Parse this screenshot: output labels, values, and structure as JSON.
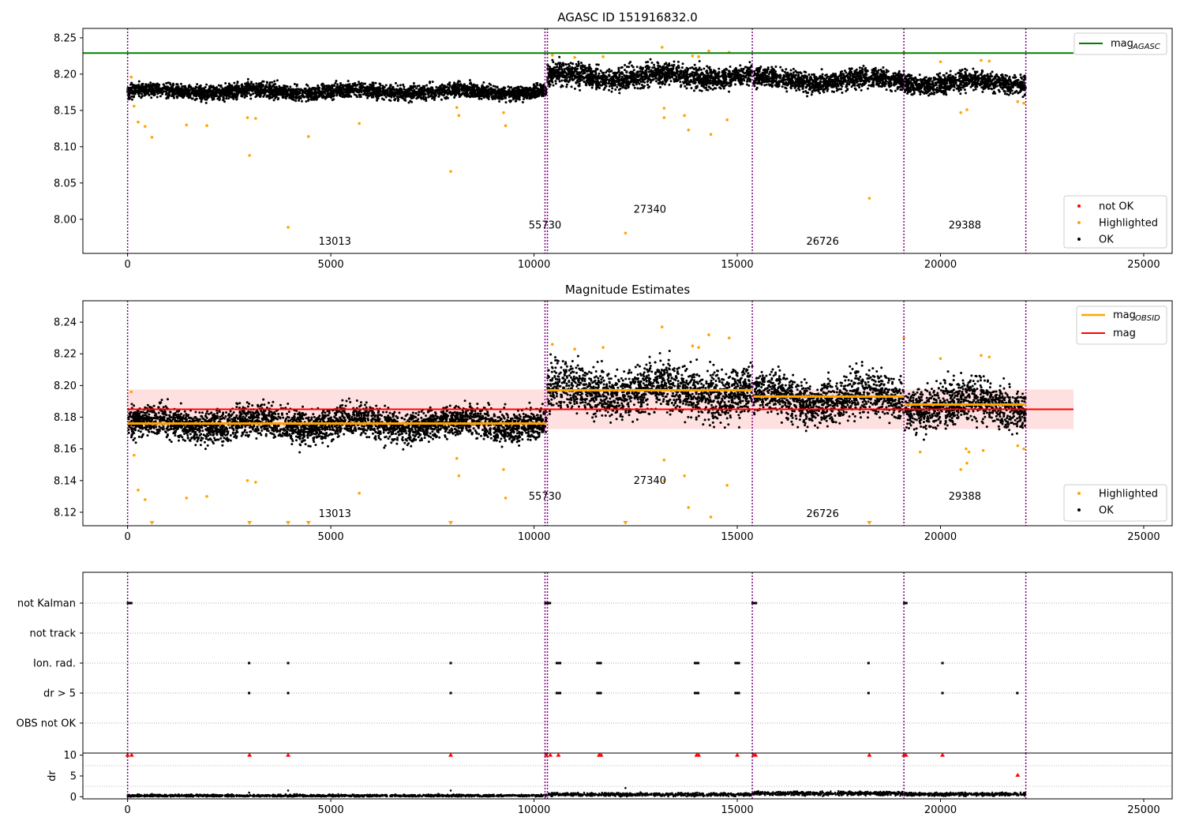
{
  "colors": {
    "ok": "#000000",
    "highlighted": "#ffa500",
    "not_ok": "#ff0000",
    "agasc_line": "#008000",
    "mean_line": "#ff0000",
    "obsid_line": "#ffa500",
    "band": "#ffcccc",
    "obs_divider": "#800080"
  },
  "chart_data": [
    {
      "type": "scatter",
      "title": "AGASC ID 151916832.0",
      "xlim": [
        -1100,
        25700
      ],
      "ylim": [
        7.953,
        8.263
      ],
      "xticks": [
        0,
        5000,
        10000,
        15000,
        20000,
        25000
      ],
      "yticks": [
        8.0,
        8.05,
        8.1,
        8.15,
        8.2,
        8.25
      ],
      "ytick_labels": [
        "8.00",
        "8.05",
        "8.10",
        "8.15",
        "8.20",
        "8.25"
      ],
      "mag_agasc": 8.229,
      "legend_upper": "mag",
      "legend_upper_sub": "AGASC",
      "legend_lower": [
        "not OK",
        "Highlighted",
        "OK"
      ],
      "obsid_boundaries": [
        0,
        10270,
        10330,
        15370,
        19100,
        22100
      ],
      "obsid_labels": [
        {
          "obsid": "13013",
          "x": 5100,
          "y": 7.965
        },
        {
          "obsid": "55730",
          "x": 10270,
          "y": 7.987
        },
        {
          "obsid": "27340",
          "x": 12850,
          "y": 8.009
        },
        {
          "obsid": "26726",
          "x": 17100,
          "y": 7.965
        },
        {
          "obsid": "29388",
          "x": 20600,
          "y": 7.987
        }
      ],
      "ok_segments": [
        {
          "x0": 0,
          "x1": 10300,
          "center": 8.176,
          "spread": 0.011
        },
        {
          "x0": 10330,
          "x1": 15370,
          "center": 8.197,
          "spread": 0.017
        },
        {
          "x0": 15400,
          "x1": 19100,
          "center": 8.192,
          "spread": 0.015
        },
        {
          "x0": 19120,
          "x1": 22100,
          "center": 8.188,
          "spread": 0.015
        }
      ],
      "highlighted_points": [
        [
          90,
          8.196
        ],
        [
          160,
          8.156
        ],
        [
          260,
          8.134
        ],
        [
          430,
          8.128
        ],
        [
          600,
          8.113
        ],
        [
          1450,
          8.13
        ],
        [
          1950,
          8.129
        ],
        [
          2950,
          8.14
        ],
        [
          3000,
          8.088
        ],
        [
          3150,
          8.139
        ],
        [
          3950,
          7.989
        ],
        [
          4450,
          8.114
        ],
        [
          5700,
          8.132
        ],
        [
          7950,
          8.066
        ],
        [
          8100,
          8.154
        ],
        [
          8150,
          8.143
        ],
        [
          9250,
          8.147
        ],
        [
          9300,
          8.129
        ],
        [
          10450,
          8.226
        ],
        [
          11000,
          8.223
        ],
        [
          12250,
          7.981
        ],
        [
          13150,
          8.237
        ],
        [
          13200,
          8.153
        ],
        [
          13200,
          8.14
        ],
        [
          13700,
          8.143
        ],
        [
          13800,
          8.123
        ],
        [
          14350,
          8.117
        ],
        [
          14750,
          8.137
        ],
        [
          14800,
          8.23
        ],
        [
          14300,
          8.232
        ],
        [
          18250,
          8.029
        ],
        [
          19100,
          8.23
        ],
        [
          20500,
          8.147
        ],
        [
          20650,
          8.151
        ],
        [
          21900,
          8.162
        ],
        [
          22050,
          8.16
        ],
        [
          13900,
          8.225
        ],
        [
          14050,
          8.224
        ],
        [
          11700,
          8.224
        ],
        [
          20000,
          8.217
        ],
        [
          21000,
          8.219
        ],
        [
          21200,
          8.218
        ]
      ]
    },
    {
      "type": "scatter",
      "title": "Magnitude Estimates",
      "xlim": [
        -1100,
        25700
      ],
      "ylim": [
        8.1115,
        8.2535
      ],
      "xticks": [
        0,
        5000,
        10000,
        15000,
        20000,
        25000
      ],
      "yticks": [
        8.12,
        8.14,
        8.16,
        8.18,
        8.2,
        8.22,
        8.24
      ],
      "ytick_labels": [
        "8.12",
        "8.14",
        "8.16",
        "8.18",
        "8.20",
        "8.22",
        "8.24"
      ],
      "mag_mean": 8.185,
      "mag_band": [
        8.1725,
        8.1975
      ],
      "mag_obsid": [
        {
          "x0": 0,
          "x1": 10300,
          "value": 8.176
        },
        {
          "x0": 10330,
          "x1": 15370,
          "value": 8.197
        },
        {
          "x0": 15400,
          "x1": 19100,
          "value": 8.193
        },
        {
          "x0": 19120,
          "x1": 22100,
          "value": 8.188
        }
      ],
      "legend_upper": [
        {
          "label": "mag",
          "sub": "OBSID"
        },
        {
          "label": "mag",
          "sub": ""
        }
      ],
      "legend_lower": [
        "Highlighted",
        "OK"
      ],
      "obsid_boundaries": [
        0,
        10270,
        10330,
        15370,
        19100,
        22100
      ],
      "obsid_labels": [
        {
          "obsid": "13013",
          "x": 5100,
          "y": 8.117
        },
        {
          "obsid": "55730",
          "x": 10270,
          "y": 8.128
        },
        {
          "obsid": "27340",
          "x": 12850,
          "y": 8.138
        },
        {
          "obsid": "26726",
          "x": 17100,
          "y": 8.117
        },
        {
          "obsid": "29388",
          "x": 20600,
          "y": 8.128
        }
      ],
      "ok_segments": [
        {
          "x0": 0,
          "x1": 10300,
          "center": 8.176,
          "spread": 0.011
        },
        {
          "x0": 10330,
          "x1": 15370,
          "center": 8.197,
          "spread": 0.017
        },
        {
          "x0": 15400,
          "x1": 19100,
          "center": 8.192,
          "spread": 0.015
        },
        {
          "x0": 19120,
          "x1": 22100,
          "center": 8.188,
          "spread": 0.015
        }
      ],
      "highlighted_points": [
        [
          90,
          8.196
        ],
        [
          160,
          8.156
        ],
        [
          260,
          8.134
        ],
        [
          430,
          8.128
        ],
        [
          1450,
          8.129
        ],
        [
          1950,
          8.13
        ],
        [
          2950,
          8.14
        ],
        [
          3150,
          8.139
        ],
        [
          5700,
          8.132
        ],
        [
          8100,
          8.154
        ],
        [
          8150,
          8.143
        ],
        [
          9250,
          8.147
        ],
        [
          9300,
          8.129
        ],
        [
          10450,
          8.226
        ],
        [
          11000,
          8.223
        ],
        [
          13150,
          8.237
        ],
        [
          13200,
          8.153
        ],
        [
          13200,
          8.14
        ],
        [
          13700,
          8.143
        ],
        [
          13800,
          8.123
        ],
        [
          14350,
          8.117
        ],
        [
          14750,
          8.137
        ],
        [
          14800,
          8.23
        ],
        [
          14300,
          8.232
        ],
        [
          20500,
          8.147
        ],
        [
          20650,
          8.151
        ],
        [
          21900,
          8.162
        ],
        [
          22050,
          8.16
        ],
        [
          13900,
          8.225
        ],
        [
          14050,
          8.224
        ],
        [
          11700,
          8.224
        ],
        [
          19100,
          8.23
        ],
        [
          20000,
          8.217
        ],
        [
          21000,
          8.219
        ],
        [
          21200,
          8.218
        ],
        [
          20630,
          8.16
        ],
        [
          20700,
          8.158
        ],
        [
          21050,
          8.159
        ],
        [
          19500,
          8.158
        ]
      ],
      "out_of_range_markers": [
        600,
        3000,
        3950,
        4450,
        7950,
        12250,
        18250
      ]
    },
    {
      "type": "scatter",
      "title": "",
      "xlim": [
        -1100,
        25700
      ],
      "xticks": [
        0,
        5000,
        10000,
        15000,
        20000,
        25000
      ],
      "flag_rows": [
        "not Kalman",
        "not track",
        "Ion. rad.",
        "dr > 5",
        "OBS not OK"
      ],
      "flag_points": {
        "not Kalman": [
          [
            0,
            100
          ],
          [
            10270,
            10400
          ],
          [
            15370,
            15470
          ],
          [
            19100,
            19170
          ]
        ],
        "not track": [],
        "Ion. rad.": [
          [
            2980,
            3000
          ],
          [
            3940,
            3960
          ],
          [
            7940,
            7960
          ],
          [
            10550,
            10650
          ],
          [
            11550,
            11650
          ],
          [
            13950,
            14050
          ],
          [
            14950,
            15050
          ],
          [
            18220,
            18240
          ],
          [
            20040,
            20060
          ]
        ],
        "dr > 5": [
          [
            2980,
            3000
          ],
          [
            3940,
            3960
          ],
          [
            7940,
            7960
          ],
          [
            10550,
            10650
          ],
          [
            11550,
            11650
          ],
          [
            13950,
            14050
          ],
          [
            14950,
            15050
          ],
          [
            18220,
            18240
          ],
          [
            20040,
            20060
          ],
          [
            21880,
            21900
          ]
        ],
        "OBS not OK": []
      },
      "obsid_boundaries": [
        0,
        10270,
        10330,
        15370,
        19100,
        22100
      ]
    },
    {
      "type": "scatter",
      "title": "",
      "ylabel": "dr",
      "xlim": [
        -1100,
        25700
      ],
      "ylim": [
        -0.5,
        10.5
      ],
      "xticks": [
        0,
        5000,
        10000,
        15000,
        20000,
        25000
      ],
      "yticks": [
        0,
        5,
        10
      ],
      "ok_segments": [
        {
          "x0": 0,
          "x1": 10300,
          "center": 0.25,
          "spread": 0.3
        },
        {
          "x0": 10330,
          "x1": 15370,
          "center": 0.55,
          "spread": 0.4
        },
        {
          "x0": 15400,
          "x1": 19100,
          "center": 0.8,
          "spread": 0.5
        },
        {
          "x0": 19120,
          "x1": 22100,
          "center": 0.6,
          "spread": 0.4
        }
      ],
      "isolated_points": [
        [
          2990,
          1.0
        ],
        [
          3950,
          1.5
        ],
        [
          7950,
          1.5
        ],
        [
          12250,
          2.1
        ],
        [
          18300,
          0.9
        ],
        [
          20600,
          0.8
        ]
      ],
      "not_ok_points": [
        [
          0,
          10
        ],
        [
          100,
          10
        ],
        [
          3000,
          10
        ],
        [
          3950,
          10
        ],
        [
          7950,
          10
        ],
        [
          10300,
          10
        ],
        [
          10400,
          10
        ],
        [
          10600,
          10
        ],
        [
          11600,
          10
        ],
        [
          11650,
          10
        ],
        [
          14000,
          10
        ],
        [
          14050,
          10
        ],
        [
          15000,
          10
        ],
        [
          15400,
          10
        ],
        [
          15450,
          10
        ],
        [
          18250,
          10
        ],
        [
          19100,
          10
        ],
        [
          19150,
          10
        ],
        [
          20050,
          10
        ],
        [
          21900,
          5.2
        ]
      ],
      "obsid_boundaries": [
        0,
        10270,
        10330,
        15370,
        19100,
        22100
      ]
    }
  ]
}
